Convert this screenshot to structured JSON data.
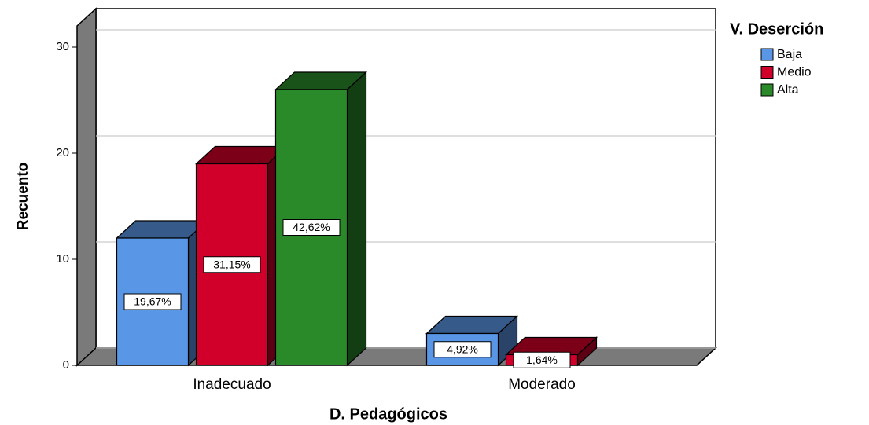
{
  "chart_data": {
    "type": "bar3d",
    "x_label": "D. Pedagógicos",
    "y_label": "Recuento",
    "legend_title": "V. Deserción",
    "legend_position": "right",
    "categories": [
      "Inadecuado",
      "Moderado"
    ],
    "series": [
      {
        "name": "Baja",
        "color": "#5a96e6",
        "values": [
          12,
          3
        ],
        "value_labels": [
          "19,67%",
          "4,92%"
        ]
      },
      {
        "name": "Medio",
        "color": "#d0002a",
        "values": [
          19,
          1
        ],
        "value_labels": [
          "31,15%",
          "1,64%"
        ]
      },
      {
        "name": "Alta",
        "color": "#2a8a2a",
        "values": [
          26,
          null
        ],
        "value_labels": [
          "42,62%",
          null
        ]
      }
    ],
    "ylim": [
      0,
      32
    ],
    "yticks": [
      0,
      10,
      20,
      30
    ],
    "grid": true
  }
}
